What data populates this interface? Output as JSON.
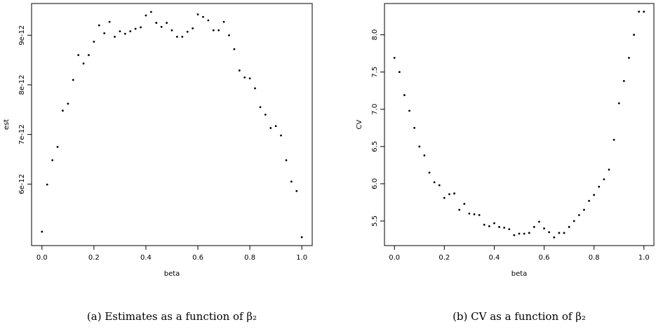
{
  "chart_data": [
    {
      "type": "scatter",
      "caption": "(a) Estimates as a function of β₂",
      "xlabel": "beta",
      "ylabel": "est",
      "color": "#000000",
      "x": [
        0,
        0.02,
        0.04,
        0.06,
        0.08,
        0.1,
        0.12,
        0.14,
        0.16,
        0.18,
        0.2,
        0.22,
        0.24,
        0.26,
        0.28,
        0.3,
        0.32,
        0.34,
        0.36,
        0.38,
        0.4,
        0.42,
        0.44,
        0.46,
        0.48,
        0.5,
        0.52,
        0.54,
        0.56,
        0.58,
        0.6,
        0.62,
        0.64,
        0.66,
        0.68,
        0.7,
        0.72,
        0.74,
        0.76,
        0.78,
        0.8,
        0.82,
        0.84,
        0.86,
        0.88,
        0.9,
        0.92,
        0.94,
        0.96,
        0.98,
        1
      ],
      "values": [
        5.04e-12,
        5.99e-12,
        6.48e-12,
        6.75e-12,
        7.48e-12,
        7.62e-12,
        8.1e-12,
        8.6e-12,
        8.43e-12,
        8.6e-12,
        8.87e-12,
        9.2e-12,
        9.04e-12,
        9.27e-12,
        8.97e-12,
        9.08e-12,
        9.03e-12,
        9.08e-12,
        9.13e-12,
        9.16e-12,
        9.4e-12,
        9.47e-12,
        9.25e-12,
        9.17e-12,
        9.25e-12,
        9.1e-12,
        8.97e-12,
        8.97e-12,
        9.07e-12,
        9.14e-12,
        9.42e-12,
        9.37e-12,
        9.3e-12,
        9.1e-12,
        9.1e-12,
        9.27e-12,
        9e-12,
        8.72e-12,
        8.29e-12,
        8.15e-12,
        8.13e-12,
        7.93e-12,
        7.55e-12,
        7.4e-12,
        7.13e-12,
        7.17e-12,
        6.98e-12,
        6.48e-12,
        6.05e-12,
        5.86e-12,
        4.93e-12
      ],
      "xlim": [
        -0.04,
        1.04
      ],
      "ylim": [
        4.76e-12,
        9.64e-12
      ],
      "xticks": [
        {
          "value": 0,
          "label": "0.0"
        },
        0.2,
        0.4,
        0.6,
        0.8,
        {
          "value": 1,
          "label": "1.0"
        }
      ],
      "yticks": [
        {
          "value": 6e-12,
          "label": "6e-12"
        },
        {
          "value": 7e-12,
          "label": "7e-12"
        },
        {
          "value": 8e-12,
          "label": "8e-12"
        },
        {
          "value": 9e-12,
          "label": "9e-12"
        }
      ]
    },
    {
      "type": "scatter",
      "caption": "(b) CV as a function of β₂",
      "xlabel": "beta",
      "ylabel": "CV",
      "color": "#000000",
      "x": [
        0,
        0.02,
        0.04,
        0.06,
        0.08,
        0.1,
        0.12,
        0.14,
        0.16,
        0.18,
        0.2,
        0.22,
        0.24,
        0.26,
        0.28,
        0.3,
        0.32,
        0.34,
        0.36,
        0.38,
        0.4,
        0.42,
        0.44,
        0.46,
        0.48,
        0.5,
        0.52,
        0.54,
        0.56,
        0.58,
        0.6,
        0.62,
        0.64,
        0.66,
        0.68,
        0.7,
        0.72,
        0.74,
        0.76,
        0.78,
        0.8,
        0.82,
        0.84,
        0.86,
        0.88,
        0.9,
        0.92,
        0.94,
        0.96,
        0.98,
        1
      ],
      "values": [
        7.69,
        7.5,
        7.19,
        6.98,
        6.75,
        6.5,
        6.38,
        6.15,
        6.02,
        5.98,
        5.81,
        5.86,
        5.87,
        5.65,
        5.73,
        5.6,
        5.59,
        5.58,
        5.45,
        5.43,
        5.47,
        5.42,
        5.41,
        5.39,
        5.31,
        5.33,
        5.33,
        5.34,
        5.42,
        5.49,
        5.4,
        5.35,
        5.28,
        5.34,
        5.34,
        5.42,
        5.5,
        5.58,
        5.65,
        5.77,
        5.85,
        5.96,
        6.06,
        6.19,
        6.59,
        7.08,
        7.38,
        7.69,
        8.0,
        8.31,
        8.31
      ],
      "xlim": [
        -0.04,
        1.04
      ],
      "ylim": [
        5.17,
        8.42
      ],
      "xticks": [
        {
          "value": 0,
          "label": "0.0"
        },
        0.2,
        0.4,
        0.6,
        0.8,
        {
          "value": 1,
          "label": "1.0"
        }
      ],
      "yticks": [
        5.5,
        {
          "value": 6,
          "label": "6.0"
        },
        6.5,
        {
          "value": 7,
          "label": "7.0"
        },
        7.5,
        {
          "value": 8,
          "label": "8.0"
        }
      ]
    }
  ]
}
